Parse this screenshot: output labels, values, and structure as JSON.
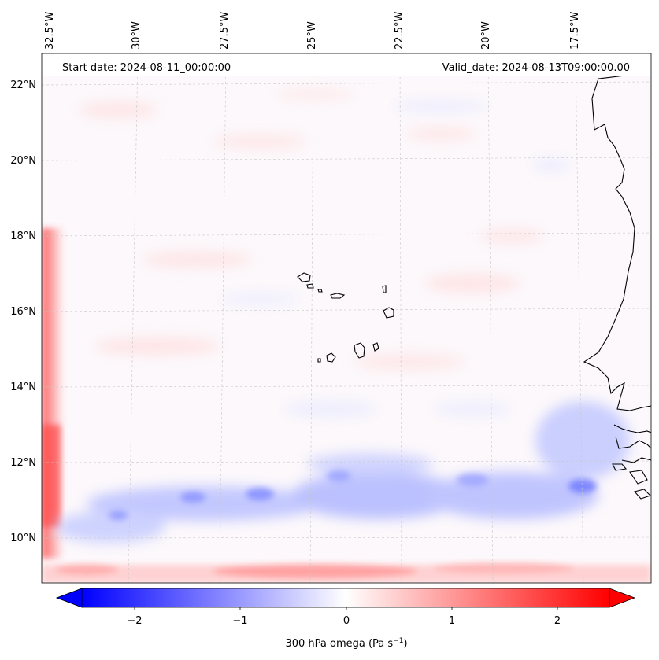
{
  "header": {
    "start_date": "Start date: 2024-08-11_00:00:00",
    "valid_date": "Valid_date: 2024-08-13T09:00:00.00"
  },
  "axes": {
    "longitude_labels": [
      "32.5°W",
      "30°W",
      "27.5°W",
      "25°W",
      "22.5°W",
      "20°W",
      "17.5°W"
    ],
    "latitude_labels": [
      "22°N",
      "20°N",
      "18°N",
      "16°N",
      "14°N",
      "12°N",
      "10°N"
    ]
  },
  "colorbar": {
    "tick_labels": [
      "−2",
      "−1",
      "0",
      "1",
      "2"
    ],
    "label_text": "300 hPa omega (Pa s",
    "label_exponent": "−1",
    "label_close": ")",
    "range": [
      -2.75,
      2.75
    ],
    "negative_color": "#0000ff",
    "positive_color": "#ff0000",
    "center_color": "#ffffff"
  }
}
